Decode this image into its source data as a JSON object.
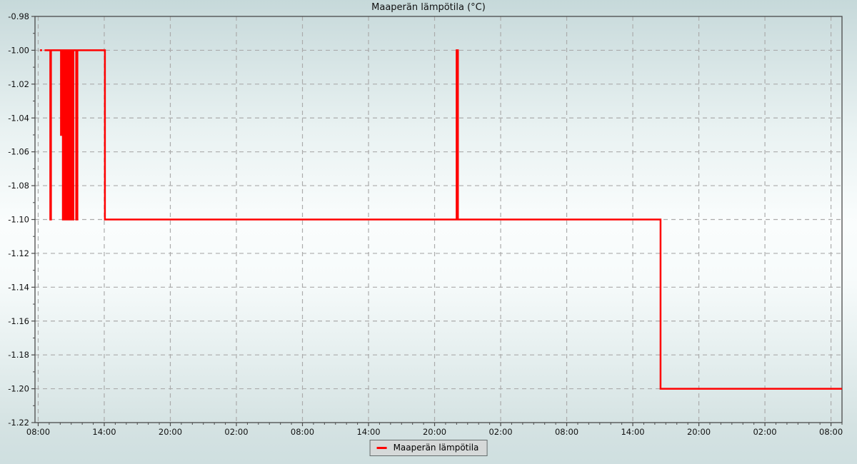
{
  "title": "Maaperän lämpötila (°C)",
  "legend": {
    "label": "Maaperän lämpötila",
    "swatch_color": "#ff0000"
  },
  "colors": {
    "series_line": "#ff0000",
    "grid_line": "#ababab",
    "axis_border": "#4a4a4a",
    "tick_text": "#111111",
    "legend_bg": "#d6d9d9",
    "bg_top": "#c6d9da",
    "bg_middle": "#fafdfd",
    "bg_bottom": "#cfdfe0"
  },
  "chart_data": {
    "type": "line",
    "title": "Maaperän lämpötila (°C)",
    "series_name": "Maaperän lämpötila",
    "line_color": "#ff0000",
    "grid": "dashed major gridlines, both axes",
    "legend_position": "bottom center",
    "x_axis": {
      "unit_note": "time of day, hours measured from 00:00 of first day; span ≈ 3 days",
      "range": [
        7.71,
        81.0
      ],
      "major_tick_hours": [
        8,
        14,
        20,
        26,
        32,
        38,
        44,
        50,
        56,
        62,
        68,
        74,
        80
      ],
      "major_tick_labels": [
        "08:00",
        "14:00",
        "20:00",
        "02:00",
        "08:00",
        "14:00",
        "20:00",
        "02:00",
        "08:00",
        "14:00",
        "20:00",
        "02:00",
        "08:00"
      ],
      "minor_tick_step_hours": 1
    },
    "y_axis": {
      "top": -0.98,
      "bottom": -1.22,
      "major_step": 0.02,
      "minor_step": 0.01,
      "tick_labels": [
        "-0.98",
        "-1.00",
        "-1.02",
        "-1.04",
        "-1.06",
        "-1.08",
        "-1.10",
        "-1.12",
        "-1.14",
        "-1.16",
        "-1.18",
        "-1.20",
        "-1.22"
      ]
    },
    "segments": [
      [
        [
          8.16,
          -1.0
        ],
        [
          8.36,
          -1.0
        ]
      ],
      [
        [
          8.58,
          -1.0
        ],
        [
          9.1,
          -1.0
        ],
        [
          9.1,
          -1.1
        ],
        [
          9.16,
          -1.1
        ],
        [
          9.16,
          -1.0
        ],
        [
          10.07,
          -1.0
        ],
        [
          10.07,
          -1.05
        ],
        [
          10.11,
          -1.05
        ],
        [
          10.11,
          -1.0
        ],
        [
          10.24,
          -1.0
        ],
        [
          10.24,
          -1.1
        ],
        [
          10.3,
          -1.1
        ],
        [
          10.3,
          -1.0
        ],
        [
          10.43,
          -1.0
        ],
        [
          10.43,
          -1.1
        ],
        [
          10.47,
          -1.1
        ],
        [
          10.47,
          -1.0
        ],
        [
          10.5,
          -1.0
        ],
        [
          10.5,
          -1.1
        ],
        [
          10.54,
          -1.1
        ],
        [
          10.54,
          -1.0
        ],
        [
          10.57,
          -1.0
        ],
        [
          10.57,
          -1.1
        ],
        [
          10.61,
          -1.1
        ],
        [
          10.61,
          -1.0
        ],
        [
          10.64,
          -1.0
        ],
        [
          10.64,
          -1.1
        ],
        [
          10.68,
          -1.1
        ],
        [
          10.68,
          -1.0
        ],
        [
          10.71,
          -1.0
        ],
        [
          10.71,
          -1.1
        ],
        [
          10.82,
          -1.1
        ],
        [
          10.82,
          -1.0
        ],
        [
          10.85,
          -1.0
        ],
        [
          10.85,
          -1.1
        ],
        [
          10.89,
          -1.1
        ],
        [
          10.89,
          -1.0
        ],
        [
          10.93,
          -1.0
        ],
        [
          10.93,
          -1.1
        ],
        [
          11.05,
          -1.1
        ],
        [
          11.05,
          -1.0
        ],
        [
          11.08,
          -1.0
        ],
        [
          11.08,
          -1.1
        ],
        [
          11.12,
          -1.1
        ],
        [
          11.12,
          -1.0
        ],
        [
          11.16,
          -1.0
        ],
        [
          11.16,
          -1.1
        ],
        [
          11.2,
          -1.1
        ],
        [
          11.2,
          -1.0
        ],
        [
          11.23,
          -1.0
        ],
        [
          11.45,
          -1.0
        ],
        [
          11.45,
          -1.1
        ],
        [
          11.56,
          -1.1
        ],
        [
          11.56,
          -1.0
        ],
        [
          14.06,
          -1.0
        ],
        [
          14.06,
          -1.1
        ],
        [
          46.0,
          -1.1
        ],
        [
          46.0,
          -1.0
        ],
        [
          46.12,
          -1.0
        ],
        [
          46.12,
          -1.1
        ],
        [
          64.52,
          -1.1
        ],
        [
          64.52,
          -1.2
        ],
        [
          81.0,
          -1.2
        ]
      ]
    ]
  }
}
